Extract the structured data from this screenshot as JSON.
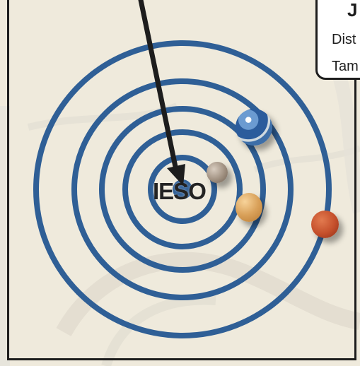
{
  "map": {
    "center_label": "IESO",
    "colors": {
      "ring": "#2f5f96",
      "background": "#efeadc",
      "frame": "#1d1d1d",
      "arrow": "#1d1d1d"
    }
  },
  "callout": {
    "title": "J",
    "line1": "Dist",
    "line2": "Tam"
  },
  "planets": [
    {
      "name": "earth-icon"
    },
    {
      "name": "moon-icon"
    },
    {
      "name": "venus-icon"
    },
    {
      "name": "mars-icon"
    }
  ]
}
